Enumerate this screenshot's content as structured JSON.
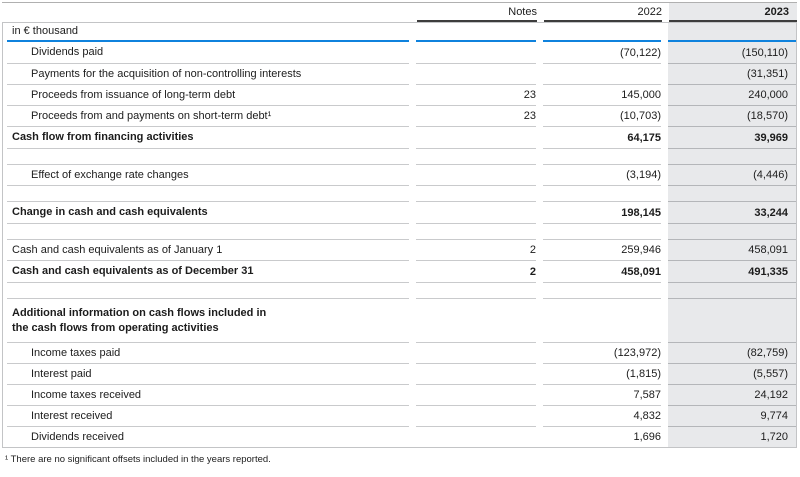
{
  "colors": {
    "accent_blue": "#0f82dd",
    "highlight_column_bg": "#e8e9eb",
    "header_rule_dark": "#3d3d3d"
  },
  "table": {
    "unit_label": "in € thousand",
    "columns": {
      "notes": "Notes",
      "y2022": "2022",
      "y2023": "2023"
    },
    "rows": [
      {
        "type": "data",
        "indent": true,
        "label": "Dividends paid",
        "notes": "",
        "y2022": "(70,122)",
        "y2023": "(150,110)"
      },
      {
        "type": "data",
        "indent": true,
        "label": "Payments for the acquisition of non-controlling interests",
        "notes": "",
        "y2022": "",
        "y2023": "(31,351)"
      },
      {
        "type": "data",
        "indent": true,
        "label": "Proceeds from issuance of long-term debt",
        "notes": "23",
        "y2022": "145,000",
        "y2023": "240,000"
      },
      {
        "type": "data",
        "indent": true,
        "label": "Proceeds from and payments on short-term debt¹",
        "notes": "23",
        "y2022": "(10,703)",
        "y2023": "(18,570)"
      },
      {
        "type": "data",
        "bold": true,
        "label": "Cash flow from financing activities",
        "notes": "",
        "y2022": "64,175",
        "y2023": "39,969"
      },
      {
        "type": "spacer"
      },
      {
        "type": "data",
        "indent": true,
        "label": "Effect of exchange rate changes",
        "notes": "",
        "y2022": "(3,194)",
        "y2023": "(4,446)"
      },
      {
        "type": "spacer"
      },
      {
        "type": "data",
        "bold": true,
        "label": "Change in cash and cash equivalents",
        "notes": "",
        "y2022": "198,145",
        "y2023": "33,244"
      },
      {
        "type": "spacer"
      },
      {
        "type": "data",
        "label": "Cash and cash equivalents as of January 1",
        "notes": "2",
        "y2022": "259,946",
        "y2023": "458,091"
      },
      {
        "type": "data",
        "bold": true,
        "label": "Cash and cash equivalents as of December 31",
        "notes": "2",
        "y2022": "458,091",
        "y2023": "491,335"
      },
      {
        "type": "spacer"
      },
      {
        "type": "heading",
        "bold": true,
        "tall": true,
        "label": "Additional information on cash flows included in\nthe cash flows from operating activities",
        "notes": "",
        "y2022": "",
        "y2023": ""
      },
      {
        "type": "data",
        "indent": true,
        "label": "Income taxes paid",
        "notes": "",
        "y2022": "(123,972)",
        "y2023": "(82,759)"
      },
      {
        "type": "data",
        "indent": true,
        "label": "Interest paid",
        "notes": "",
        "y2022": "(1,815)",
        "y2023": "(5,557)"
      },
      {
        "type": "data",
        "indent": true,
        "label": "Income taxes received",
        "notes": "",
        "y2022": "7,587",
        "y2023": "24,192"
      },
      {
        "type": "data",
        "indent": true,
        "label": "Interest received",
        "notes": "",
        "y2022": "4,832",
        "y2023": "9,774"
      },
      {
        "type": "data",
        "indent": true,
        "label": "Dividends received",
        "notes": "",
        "y2022": "1,696",
        "y2023": "1,720"
      }
    ],
    "footnote": "¹ There are no significant offsets included in the years reported."
  }
}
